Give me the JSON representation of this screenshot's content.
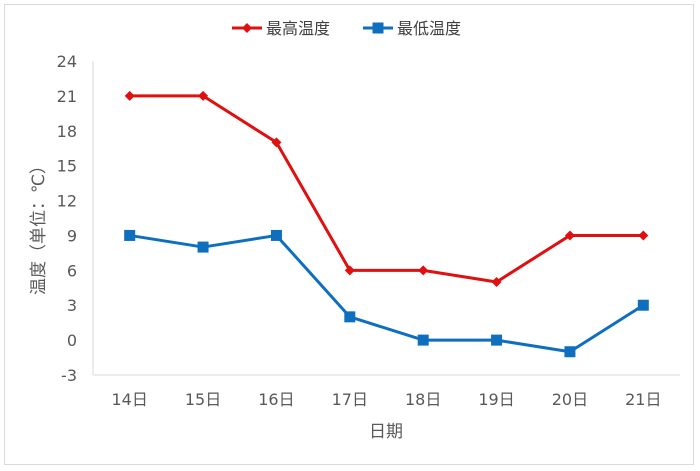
{
  "chart_data": {
    "type": "line",
    "categories": [
      "14日",
      "15日",
      "16日",
      "17日",
      "18日",
      "19日",
      "20日",
      "21日"
    ],
    "series": [
      {
        "name": "最高温度",
        "values": [
          21,
          21,
          17,
          6,
          6,
          5,
          9,
          9
        ],
        "color": "#e01010",
        "marker": "diamond"
      },
      {
        "name": "最低温度",
        "values": [
          9,
          8,
          9,
          2,
          0,
          0,
          -1,
          3
        ],
        "color": "#0f6fbf",
        "marker": "square"
      }
    ],
    "xlabel": "日期",
    "ylabel": "温度（单位：℃）",
    "ylim": [
      -3,
      24
    ],
    "yticks": [
      -3,
      0,
      3,
      6,
      9,
      12,
      15,
      18,
      21,
      24
    ],
    "legend_position": "top",
    "grid": false,
    "axis_color": "#d9d9d9"
  }
}
